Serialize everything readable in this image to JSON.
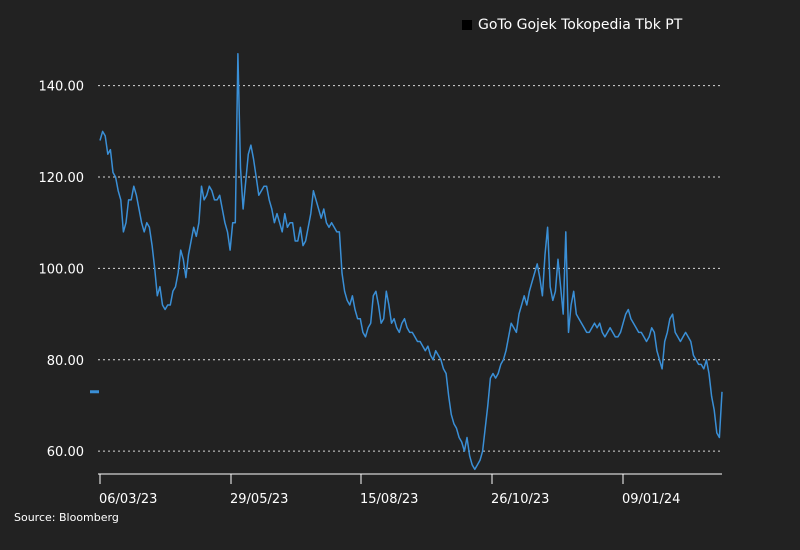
{
  "source": "Source: Bloomberg",
  "chart_data": {
    "type": "line",
    "title": "",
    "xlabel": "",
    "ylabel": "",
    "ylim": [
      55,
      150
    ],
    "yticks": [
      "60.00",
      "80.00",
      "100.00",
      "120.00",
      "140.00"
    ],
    "xticks": [
      "06/03/23",
      "29/05/23",
      "15/08/23",
      "26/10/23",
      "09/01/24"
    ],
    "grid": "horizontal-dotted",
    "legend_position": "top-right",
    "colors": {
      "series": "#3a8fd6",
      "background": "#222222",
      "legend_swatch": "#000000"
    },
    "series": [
      {
        "name": "GoTo Gojek Tokopedia Tbk PT",
        "start_date": "2023-03-06",
        "end_date": "2024-02-29",
        "values": [
          128,
          130,
          129,
          125,
          126,
          121,
          120,
          117,
          115,
          108,
          110,
          115,
          115,
          118,
          116,
          113,
          110,
          108,
          110,
          109,
          105,
          100,
          94,
          96,
          92,
          91,
          92,
          92,
          95,
          96,
          99,
          104,
          102,
          98,
          103,
          106,
          109,
          107,
          110,
          118,
          115,
          116,
          118,
          117,
          115,
          115,
          116,
          113,
          110,
          108,
          104,
          110,
          110,
          147,
          122,
          113,
          119,
          125,
          127,
          124,
          120,
          116,
          117,
          118,
          118,
          115,
          113,
          110,
          112,
          110,
          108,
          112,
          109,
          110,
          110,
          106,
          106,
          109,
          105,
          106,
          109,
          112,
          117,
          115,
          113,
          111,
          113,
          110,
          109,
          110,
          109,
          108,
          108,
          99,
          95,
          93,
          92,
          94,
          91,
          89,
          89,
          86,
          85,
          87,
          88,
          94,
          95,
          92,
          88,
          89,
          95,
          92,
          88,
          89,
          87,
          86,
          88,
          89,
          87,
          86,
          86,
          85,
          84,
          84,
          83,
          82,
          83,
          81,
          80,
          82,
          81,
          80,
          78,
          77,
          72,
          68,
          66,
          65,
          63,
          62,
          60,
          63,
          59,
          57,
          56,
          57,
          58,
          60,
          65,
          70,
          76,
          77,
          76,
          77,
          79,
          80,
          82,
          85,
          88,
          87,
          86,
          90,
          92,
          94,
          92,
          95,
          97,
          99,
          101,
          98,
          94,
          103,
          109,
          96,
          93,
          95,
          102,
          96,
          90,
          108,
          86,
          92,
          95,
          90,
          89,
          88,
          87,
          86,
          86,
          87,
          88,
          87,
          88,
          86,
          85,
          86,
          87,
          86,
          85,
          85,
          86,
          88,
          90,
          91,
          89,
          88,
          87,
          86,
          86,
          85,
          84,
          85,
          87,
          86,
          82,
          80,
          78,
          84,
          86,
          89,
          90,
          86,
          85,
          84,
          85,
          86,
          85,
          84,
          81,
          80,
          79,
          79,
          78,
          80,
          77,
          72,
          69,
          64,
          63,
          73
        ]
      }
    ]
  }
}
